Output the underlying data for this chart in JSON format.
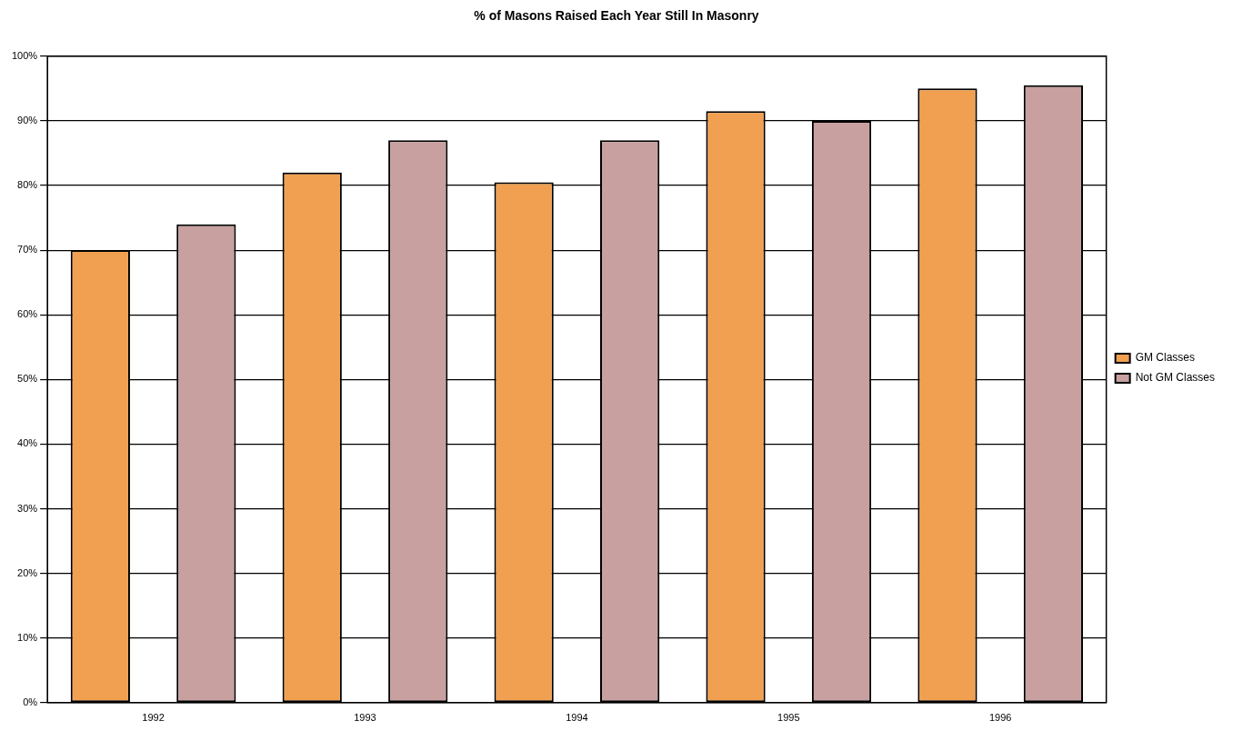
{
  "chart_data": {
    "type": "bar",
    "title": "% of Masons Raised Each Year Still In Masonry",
    "categories": [
      "1992",
      "1993",
      "1994",
      "1995",
      "1996"
    ],
    "series": [
      {
        "name": "GM Classes",
        "color": "#f0a050",
        "values": [
          70,
          82,
          80.5,
          91.5,
          95
        ]
      },
      {
        "name": "Not GM Classes",
        "color": "#c8a0a0",
        "values": [
          74,
          87,
          87,
          90,
          95.5
        ]
      }
    ],
    "ylim": [
      0,
      100
    ],
    "yticks": [
      {
        "value": 0,
        "label": "0%"
      },
      {
        "value": 10,
        "label": "10%"
      },
      {
        "value": 20,
        "label": "20%"
      },
      {
        "value": 30,
        "label": "30%"
      },
      {
        "value": 40,
        "label": "40%"
      },
      {
        "value": 50,
        "label": "50%"
      },
      {
        "value": 60,
        "label": "60%"
      },
      {
        "value": 70,
        "label": "70%"
      },
      {
        "value": 80,
        "label": "80%"
      },
      {
        "value": 90,
        "label": "90%"
      },
      {
        "value": 100,
        "label": "100%"
      }
    ],
    "grid": "y",
    "legend": "right"
  }
}
